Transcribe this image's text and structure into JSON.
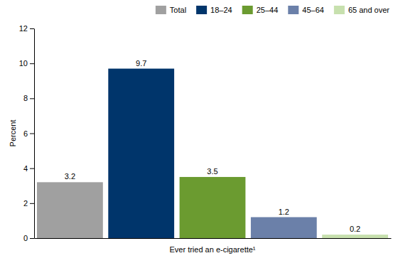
{
  "chart_data": {
    "type": "bar",
    "categories": [
      "Ever tried an e-cigarette¹"
    ],
    "series": [
      {
        "name": "Total",
        "color": "#a0a0a0",
        "values": [
          3.2
        ]
      },
      {
        "name": "18–24",
        "color": "#00356b",
        "values": [
          9.7
        ]
      },
      {
        "name": "25–44",
        "color": "#6b9b30",
        "values": [
          3.5
        ]
      },
      {
        "name": "45–64",
        "color": "#6b80a9",
        "values": [
          1.2
        ]
      },
      {
        "name": "65 and over",
        "color": "#c7e0ae",
        "values": [
          0.2
        ]
      }
    ],
    "y_label": "Percent",
    "ylim": [
      0,
      12
    ],
    "yticks": [
      0,
      2,
      4,
      6,
      8,
      10,
      12
    ],
    "data_labels": true,
    "legend": "top-right",
    "grid": false
  }
}
